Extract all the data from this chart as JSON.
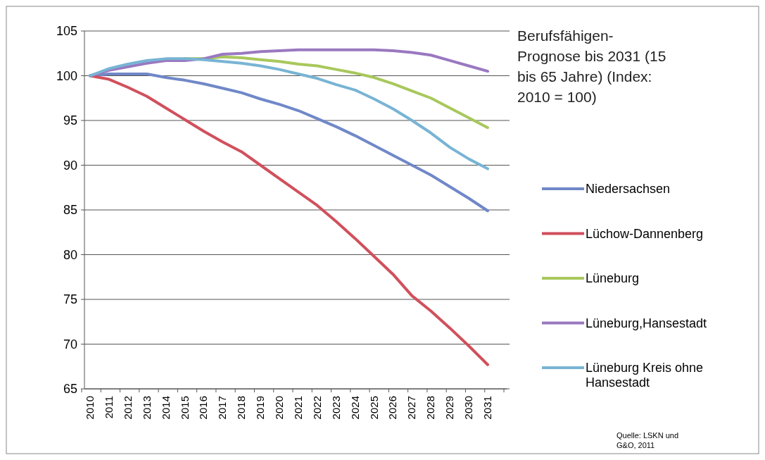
{
  "chart_data": {
    "type": "line",
    "title": "Berufsfähigen-Prognose bis 2031 (15 bis 65 Jahre) (Index: 2010 = 100)",
    "categories": [
      "2010",
      "2011",
      "2012",
      "2013",
      "2014",
      "2015",
      "2016",
      "2017",
      "2018",
      "2019",
      "2020",
      "2021",
      "2022",
      "2023",
      "2024",
      "2025",
      "2026",
      "2027",
      "2028",
      "2029",
      "2030",
      "2031"
    ],
    "series": [
      {
        "name": "Niedersachsen",
        "color": "#7088c8",
        "values": [
          100,
          100.2,
          100.2,
          100.2,
          99.8,
          99.5,
          99.1,
          98.6,
          98.1,
          97.4,
          96.8,
          96.1,
          95.2,
          94.3,
          93.3,
          92.2,
          91.1,
          90.0,
          88.9,
          87.6,
          86.3,
          84.9
        ]
      },
      {
        "name": "Lüchow-Dannenberg",
        "color": "#d0505c",
        "values": [
          100,
          99.6,
          98.7,
          97.7,
          96.4,
          95.1,
          93.8,
          92.6,
          91.5,
          90.0,
          88.5,
          87.0,
          85.5,
          83.7,
          81.8,
          79.8,
          77.8,
          75.4,
          73.7,
          71.8,
          69.8,
          67.7
        ]
      },
      {
        "name": "Lüneburg",
        "color": "#a8c85c",
        "values": [
          null,
          null,
          null,
          null,
          null,
          101.9,
          101.9,
          102.1,
          102.0,
          101.8,
          101.6,
          101.3,
          101.1,
          100.7,
          100.3,
          99.8,
          99.1,
          98.3,
          97.5,
          96.4,
          95.3,
          94.2
        ]
      },
      {
        "name": "Lüneburg,Hansestadt",
        "color": "#9a78c0",
        "values": [
          100,
          100.6,
          101.0,
          101.4,
          101.7,
          101.7,
          101.9,
          102.4,
          102.5,
          102.7,
          102.8,
          102.9,
          102.9,
          102.9,
          102.9,
          102.9,
          102.8,
          102.6,
          102.3,
          101.7,
          101.1,
          100.5
        ]
      },
      {
        "name": "Lüneburg Kreis ohne Hansestadt",
        "color": "#78b4d4",
        "values": [
          100,
          100.8,
          101.3,
          101.7,
          101.9,
          101.9,
          101.8,
          101.6,
          101.4,
          101.1,
          100.7,
          100.2,
          99.7,
          99.0,
          98.4,
          97.4,
          96.3,
          95.0,
          93.6,
          92.0,
          90.7,
          89.6
        ]
      }
    ],
    "ylim": [
      65,
      105
    ],
    "yticks": [
      65,
      70,
      75,
      80,
      85,
      90,
      95,
      100,
      105
    ],
    "grid": "y",
    "legend": "right",
    "marker": "none",
    "line_style": "solid",
    "annotations": [
      "Quelle: LSKN und G&O, 2011"
    ]
  }
}
